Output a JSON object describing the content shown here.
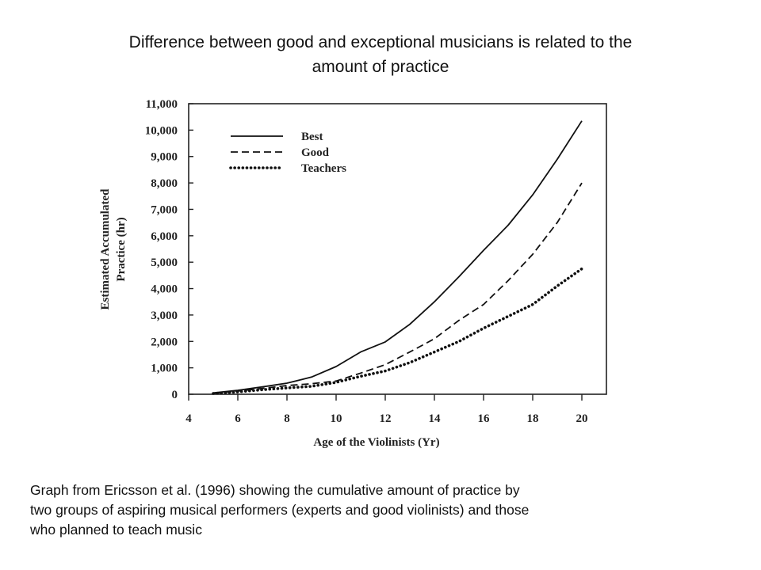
{
  "slide": {
    "title_lines": [
      "Difference between good and exceptional musicians is related to the",
      "amount of practice"
    ],
    "caption_lines": [
      "Graph from Ericsson et al. (1996) showing the cumulative amount of practice by",
      "two groups of aspiring musical performers (experts and good violinists) and those",
      "who planned to teach music"
    ]
  },
  "chart_data": {
    "type": "line",
    "xlabel": "Age of the Violinists (Yr)",
    "ylabel_lines": [
      "Estimated Accumulated",
      "Practice (hr)"
    ],
    "xlim": [
      4,
      21
    ],
    "ylim": [
      0,
      11000
    ],
    "xticks": [
      4,
      6,
      8,
      10,
      12,
      14,
      16,
      18,
      20
    ],
    "xtick_labels": [
      "4",
      "6",
      "8",
      "10",
      "12",
      "14",
      "16",
      "18",
      "20"
    ],
    "yticks": [
      0,
      1000,
      2000,
      3000,
      4000,
      5000,
      6000,
      7000,
      8000,
      9000,
      10000,
      11000
    ],
    "ytick_labels": [
      "0",
      "1,000",
      "2,000",
      "3,000",
      "4,000",
      "5,000",
      "6,000",
      "7,000",
      "8,000",
      "9,000",
      "10,000",
      "11,000"
    ],
    "grid": false,
    "legend_position": "top-left",
    "series": [
      {
        "name": "Best",
        "line_style": "solid",
        "x": [
          5,
          6,
          7,
          8,
          9,
          10,
          11,
          12,
          13,
          14,
          15,
          16,
          17,
          18,
          19,
          20
        ],
        "y": [
          50,
          150,
          280,
          420,
          650,
          1050,
          1600,
          1980,
          2650,
          3500,
          4450,
          5450,
          6400,
          7550,
          8900,
          10350
        ]
      },
      {
        "name": "Good",
        "line_style": "dashed",
        "x": [
          5,
          6,
          7,
          8,
          9,
          10,
          11,
          12,
          13,
          14,
          15,
          16,
          17,
          18,
          19,
          20
        ],
        "y": [
          40,
          120,
          220,
          330,
          400,
          500,
          800,
          1120,
          1600,
          2100,
          2800,
          3400,
          4300,
          5300,
          6500,
          8000
        ]
      },
      {
        "name": "Teachers",
        "line_style": "dotted",
        "x": [
          5,
          6,
          7,
          8,
          9,
          10,
          11,
          12,
          13,
          14,
          15,
          16,
          17,
          18,
          19,
          20
        ],
        "y": [
          30,
          90,
          170,
          240,
          300,
          450,
          680,
          880,
          1200,
          1600,
          2000,
          2500,
          2950,
          3400,
          4100,
          4750
        ]
      }
    ]
  }
}
